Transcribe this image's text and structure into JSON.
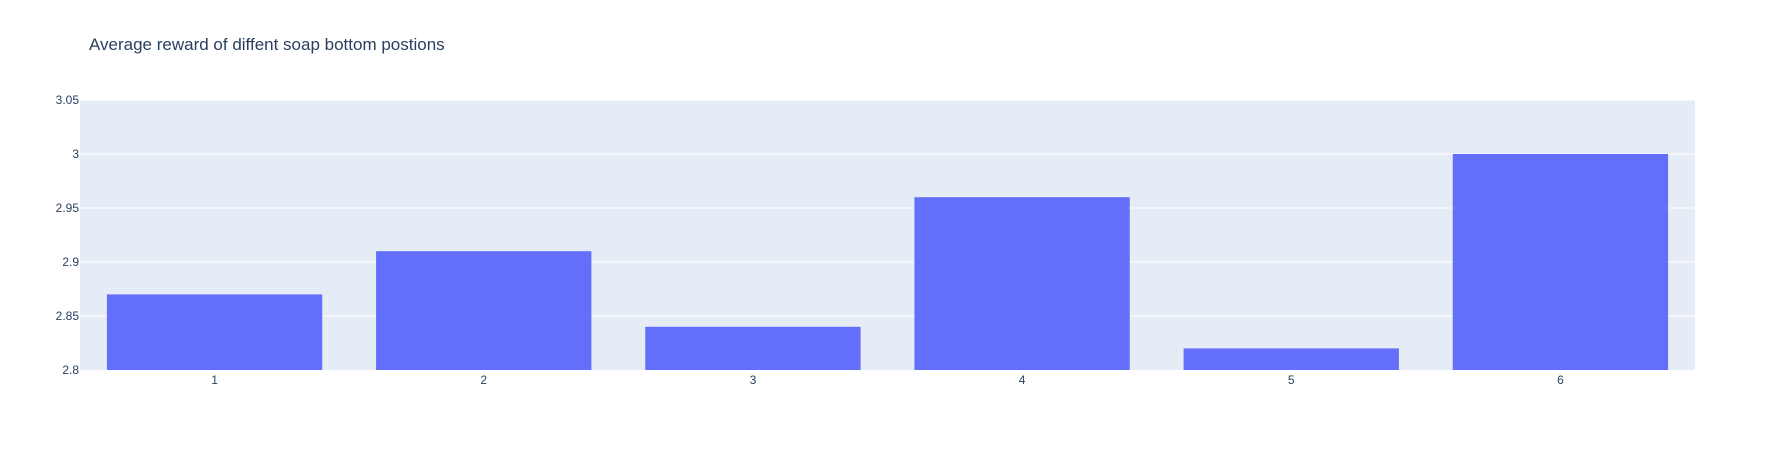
{
  "chart_data": {
    "type": "bar",
    "title": "Average reward of diffent soap bottom postions",
    "xlabel": "",
    "ylabel": "",
    "categories": [
      "1",
      "2",
      "3",
      "4",
      "5",
      "6"
    ],
    "values": [
      2.87,
      2.91,
      2.84,
      2.96,
      2.82,
      3.0
    ],
    "ylim": [
      2.8,
      3.05
    ],
    "yticks": [
      "2.8",
      "2.85",
      "2.9",
      "2.95",
      "3",
      "3.05"
    ],
    "grid": true,
    "legend": "none",
    "colors": {
      "bar": "#636efa",
      "plot_background": "#e5ecf6",
      "grid": "#ffffff",
      "text": "#2a3f5f"
    }
  }
}
